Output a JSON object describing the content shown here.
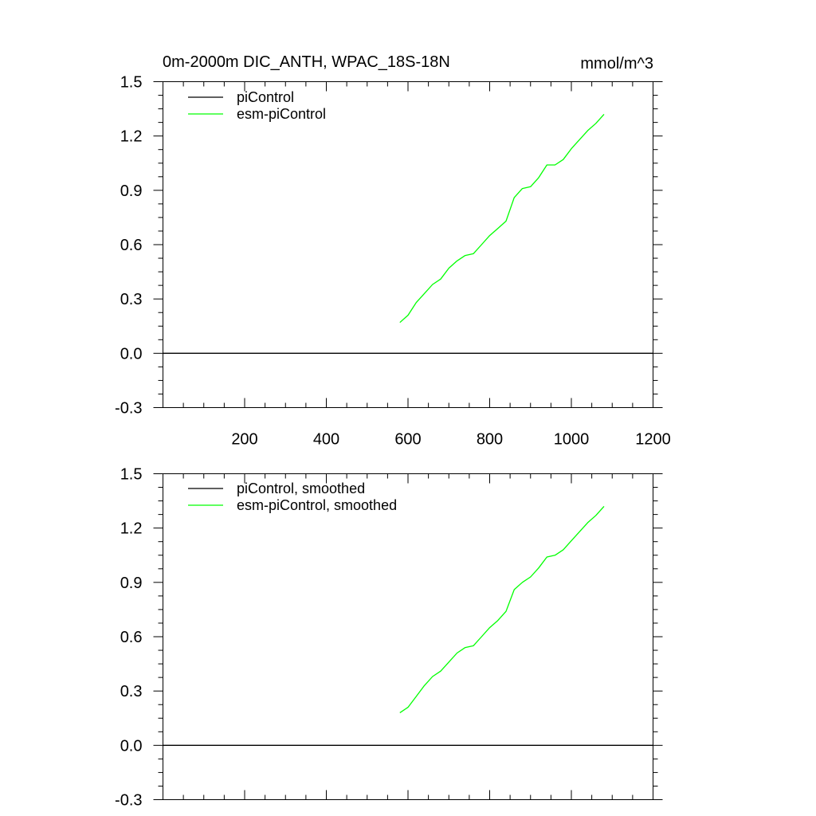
{
  "chart_data": [
    {
      "type": "line",
      "title": "0m-2000m DIC_ANTH, WPAC_18S-18N",
      "units": "mmol/m^3",
      "xlim": [
        0,
        1200
      ],
      "ylim": [
        -0.3,
        1.5
      ],
      "xticks": [
        200,
        400,
        600,
        800,
        1000,
        1200
      ],
      "yticks": [
        "-0.3",
        "0.0",
        "0.3",
        "0.6",
        "0.9",
        "1.2",
        "1.5"
      ],
      "legend_position": "top-left",
      "series": [
        {
          "name": "piControl",
          "color": "#000000",
          "x": [
            0,
            1200
          ],
          "y": [
            0.0,
            0.0
          ]
        },
        {
          "name": "esm-piControl",
          "color": "#00ff00",
          "x": [
            580,
            600,
            620,
            640,
            660,
            680,
            700,
            720,
            740,
            760,
            780,
            800,
            820,
            840,
            860,
            880,
            900,
            920,
            940,
            960,
            980,
            1000,
            1020,
            1040,
            1060,
            1080
          ],
          "y": [
            0.17,
            0.21,
            0.28,
            0.33,
            0.38,
            0.41,
            0.47,
            0.51,
            0.54,
            0.55,
            0.6,
            0.65,
            0.69,
            0.73,
            0.86,
            0.91,
            0.92,
            0.97,
            1.04,
            1.04,
            1.07,
            1.13,
            1.18,
            1.23,
            1.27,
            1.32
          ]
        }
      ]
    },
    {
      "type": "line",
      "xlim": [
        0,
        1200
      ],
      "ylim": [
        -0.3,
        1.5
      ],
      "yticks": [
        "-0.3",
        "0.0",
        "0.3",
        "0.6",
        "0.9",
        "1.2",
        "1.5"
      ],
      "legend_position": "top-left",
      "series": [
        {
          "name": "piControl, smoothed",
          "color": "#000000",
          "x": [
            0,
            1200
          ],
          "y": [
            0.0,
            0.0
          ]
        },
        {
          "name": "esm-piControl, smoothed",
          "color": "#00ff00",
          "x": [
            580,
            600,
            620,
            640,
            660,
            680,
            700,
            720,
            740,
            760,
            780,
            800,
            820,
            840,
            860,
            880,
            900,
            920,
            940,
            960,
            980,
            1000,
            1020,
            1040,
            1060,
            1080
          ],
          "y": [
            0.18,
            0.21,
            0.27,
            0.33,
            0.38,
            0.41,
            0.46,
            0.51,
            0.54,
            0.55,
            0.6,
            0.65,
            0.69,
            0.74,
            0.86,
            0.9,
            0.93,
            0.98,
            1.04,
            1.05,
            1.08,
            1.13,
            1.18,
            1.23,
            1.27,
            1.32
          ]
        }
      ]
    }
  ]
}
